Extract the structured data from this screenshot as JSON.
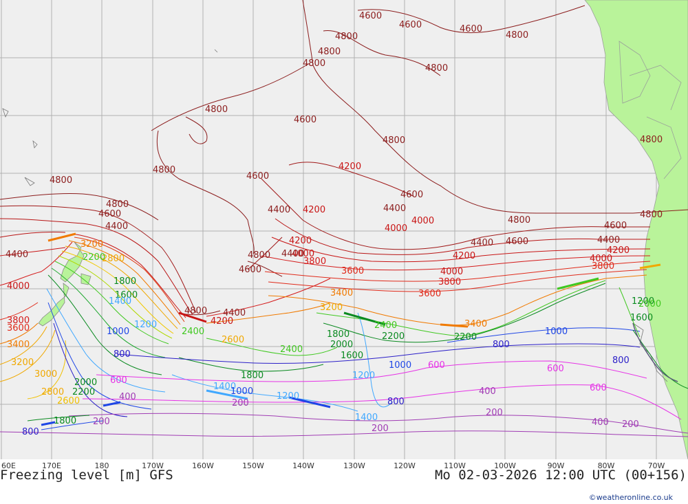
{
  "title": "Freezing level [m] GFS",
  "datetime": "Mo 02-03-2026 12:00 UTC (00+156)",
  "credit": "©weatheronline.co.uk",
  "longitude_ticks": [
    "60E",
    "170E",
    "180",
    "170W",
    "160W",
    "150W",
    "140W",
    "130W",
    "120W",
    "110W",
    "100W",
    "90W",
    "80W",
    "70W"
  ],
  "colors": {
    "ocean": "#efefef",
    "land": "#b9f39a",
    "grid": "#b0b0b0",
    "c4800": "#8b1c1c",
    "c4000": "#c81414",
    "c3400": "#f07a00",
    "c3000": "#f0a800",
    "c2400": "#40c820",
    "c1800": "#0a8a20",
    "c1200": "#40a8ff",
    "c1000": "#1e46e6",
    "c800": "#2a1ec8",
    "c600": "#e632e6",
    "c200": "#a03cb4"
  },
  "contour_labels": [
    {
      "text": "4600",
      "c": "c4800"
    },
    {
      "text": "4800",
      "c": "c4800"
    },
    {
      "text": "4600",
      "c": "c4800"
    },
    {
      "text": "4800",
      "c": "c4800"
    },
    {
      "text": "4800",
      "c": "c4800"
    },
    {
      "text": "4800",
      "c": "c4800"
    },
    {
      "text": "4800",
      "c": "c4800"
    },
    {
      "text": "4800",
      "c": "c4800"
    },
    {
      "text": "4600",
      "c": "c4800"
    },
    {
      "text": "4800",
      "c": "c4800"
    },
    {
      "text": "4800",
      "c": "c4800"
    },
    {
      "text": "4800",
      "c": "c4800"
    },
    {
      "text": "4600",
      "c": "c4800"
    },
    {
      "text": "4200",
      "c": "c4000"
    },
    {
      "text": "4600",
      "c": "c4800"
    },
    {
      "text": "4800",
      "c": "c4800"
    },
    {
      "text": "4800",
      "c": "c4800"
    },
    {
      "text": "4600",
      "c": "c4800"
    },
    {
      "text": "4400",
      "c": "c4800"
    },
    {
      "text": "4400",
      "c": "c4800"
    },
    {
      "text": "4200",
      "c": "c4000"
    },
    {
      "text": "4400",
      "c": "c4800"
    },
    {
      "text": "4000",
      "c": "c4000"
    },
    {
      "text": "4800",
      "c": "c4800"
    },
    {
      "text": "4600",
      "c": "c4800"
    },
    {
      "text": "4400",
      "c": "c4800"
    },
    {
      "text": "4600",
      "c": "c4800"
    },
    {
      "text": "4200",
      "c": "c4000"
    },
    {
      "text": "4200",
      "c": "c4000"
    },
    {
      "text": "4800",
      "c": "c4800"
    },
    {
      "text": "4000",
      "c": "c4000"
    },
    {
      "text": "3800",
      "c": "c4000"
    },
    {
      "text": "4600",
      "c": "c4800"
    },
    {
      "text": "3600",
      "c": "c4000"
    },
    {
      "text": "4000",
      "c": "c4000"
    },
    {
      "text": "3800",
      "c": "c4000"
    },
    {
      "text": "4400",
      "c": "c4800"
    },
    {
      "text": "4200",
      "c": "c4000"
    },
    {
      "text": "4000",
      "c": "c4000"
    },
    {
      "text": "3800",
      "c": "c4000"
    },
    {
      "text": "4000",
      "c": "c4000"
    },
    {
      "text": "4400",
      "c": "c4800"
    },
    {
      "text": "3400",
      "c": "c3400"
    },
    {
      "text": "3600",
      "c": "c4000"
    },
    {
      "text": "4800",
      "c": "c4800"
    },
    {
      "text": "4400",
      "c": "c4800"
    },
    {
      "text": "4200",
      "c": "c4000"
    },
    {
      "text": "3200",
      "c": "c3400"
    },
    {
      "text": "3400",
      "c": "c3400"
    },
    {
      "text": "3200",
      "c": "c3400"
    },
    {
      "text": "2800",
      "c": "c3000"
    },
    {
      "text": "2600",
      "c": "c3000"
    },
    {
      "text": "2400",
      "c": "c2400"
    },
    {
      "text": "2200",
      "c": "c2400"
    },
    {
      "text": "2400",
      "c": "c2400"
    },
    {
      "text": "2200",
      "c": "c2400"
    },
    {
      "text": "2200",
      "c": "c2400"
    },
    {
      "text": "2000",
      "c": "c1800"
    },
    {
      "text": "1800",
      "c": "c1800"
    },
    {
      "text": "1600",
      "c": "c1800"
    },
    {
      "text": "1800",
      "c": "c1800"
    },
    {
      "text": "1600",
      "c": "c1800"
    },
    {
      "text": "1200",
      "c": "c1800"
    },
    {
      "text": "2000",
      "c": "c1800"
    },
    {
      "text": "1800",
      "c": "c1800"
    },
    {
      "text": "1600",
      "c": "c1800"
    },
    {
      "text": "1400",
      "c": "c1200"
    },
    {
      "text": "1200",
      "c": "c1200"
    },
    {
      "text": "1000",
      "c": "c1000"
    },
    {
      "text": "1400",
      "c": "c1200"
    },
    {
      "text": "1200",
      "c": "c1200"
    },
    {
      "text": "1200",
      "c": "c1200"
    },
    {
      "text": "1400",
      "c": "c1200"
    },
    {
      "text": "1000",
      "c": "c1000"
    },
    {
      "text": "1000",
      "c": "c1000"
    },
    {
      "text": "1000",
      "c": "c1000"
    },
    {
      "text": "800",
      "c": "c800"
    },
    {
      "text": "800",
      "c": "c800"
    },
    {
      "text": "800",
      "c": "c800"
    },
    {
      "text": "800",
      "c": "c800"
    },
    {
      "text": "800",
      "c": "c800"
    },
    {
      "text": "600",
      "c": "c600"
    },
    {
      "text": "600",
      "c": "c600"
    },
    {
      "text": "600",
      "c": "c600"
    },
    {
      "text": "600",
      "c": "c600"
    },
    {
      "text": "400",
      "c": "c200"
    },
    {
      "text": "400",
      "c": "c200"
    },
    {
      "text": "400",
      "c": "c200"
    },
    {
      "text": "200",
      "c": "c200"
    },
    {
      "text": "200",
      "c": "c200"
    },
    {
      "text": "200",
      "c": "c200"
    },
    {
      "text": "200",
      "c": "c200"
    },
    {
      "text": "200",
      "c": "c200"
    },
    {
      "text": "1800",
      "c": "c1800"
    },
    {
      "text": "2000",
      "c": "c1800"
    },
    {
      "text": "2200",
      "c": "c1800"
    },
    {
      "text": "2400",
      "c": "c2400"
    },
    {
      "text": "2600",
      "c": "c3000"
    },
    {
      "text": "2800",
      "c": "c3000"
    },
    {
      "text": "3000",
      "c": "c3000"
    },
    {
      "text": "3200",
      "c": "c3400"
    },
    {
      "text": "3400",
      "c": "c3400"
    },
    {
      "text": "3600",
      "c": "c4000"
    },
    {
      "text": "3800",
      "c": "c4000"
    },
    {
      "text": "4000",
      "c": "c4000"
    },
    {
      "text": "4400",
      "c": "c4800"
    },
    {
      "text": "4600",
      "c": "c4800"
    },
    {
      "text": "4800",
      "c": "c4800"
    }
  ]
}
